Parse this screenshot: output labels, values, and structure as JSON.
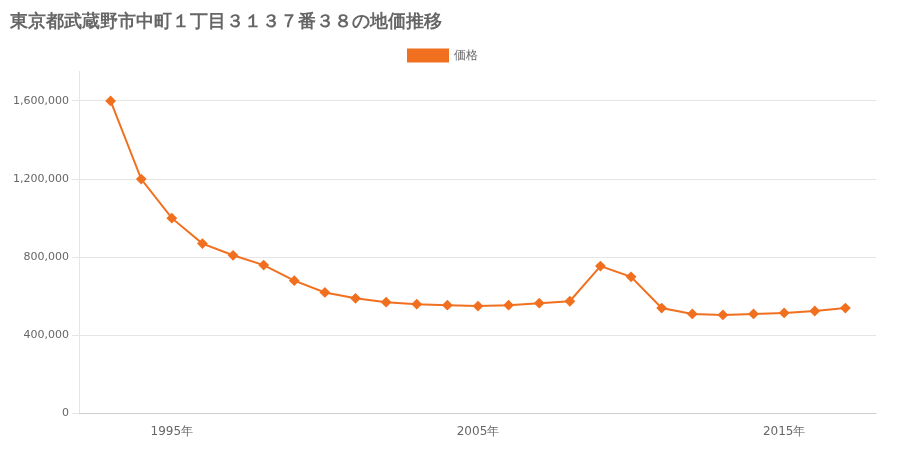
{
  "chart_data": {
    "type": "line",
    "title": "東京都武蔵野市中町１丁目３１３７番３８の地価推移",
    "x": [
      1993,
      1994,
      1995,
      1996,
      1997,
      1998,
      1999,
      2000,
      2001,
      2002,
      2003,
      2004,
      2005,
      2006,
      2007,
      2008,
      2009,
      2010,
      2011,
      2012,
      2013,
      2014,
      2015,
      2016,
      2017
    ],
    "series": [
      {
        "name": "価格",
        "color": "#f07020",
        "marker": "diamond",
        "values": [
          1600000,
          1200000,
          1000000,
          870000,
          810000,
          760000,
          680000,
          620000,
          590000,
          570000,
          560000,
          555000,
          550000,
          555000,
          565000,
          575000,
          755000,
          700000,
          540000,
          510000,
          505000,
          510000,
          515000,
          525000,
          540000
        ]
      }
    ],
    "xlim": [
      1992,
      2018
    ],
    "xticks": [
      {
        "value": 1995,
        "label": "1995年"
      },
      {
        "value": 2005,
        "label": "2005年"
      },
      {
        "value": 2015,
        "label": "2015年"
      }
    ],
    "ylim": [
      0,
      1750000
    ],
    "yticks": [
      0,
      {
        "value": 400000,
        "label": "400,000"
      },
      {
        "value": 800000,
        "label": "800,000"
      },
      {
        "value": 1200000,
        "label": "1,200,000"
      },
      {
        "value": 1600000,
        "label": "1,600,000"
      }
    ],
    "grid": "y",
    "legend": "top"
  }
}
